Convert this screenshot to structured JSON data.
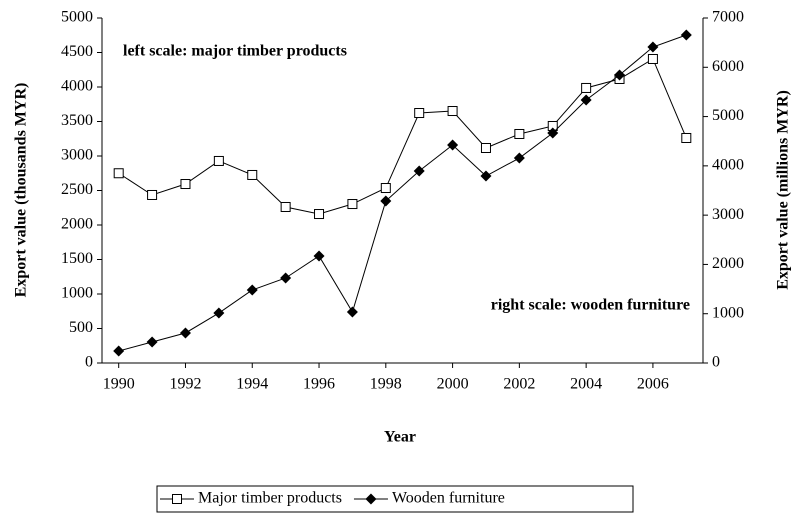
{
  "chart_data": {
    "type": "line",
    "xlabel": "Year",
    "ylabel": "Export value (thousands MYR)",
    "y2label": "Export value (millions MYR)",
    "annotations": [
      "left scale: major timber products",
      "right scale: wooden furniture"
    ],
    "x": [
      1990,
      1991,
      1992,
      1993,
      1994,
      1995,
      1996,
      1997,
      1998,
      1999,
      2000,
      2001,
      2002,
      2003,
      2004,
      2005,
      2006,
      2007
    ],
    "xlim": [
      1989.5,
      2007.5
    ],
    "xticks": [
      1990,
      1992,
      1994,
      1996,
      1998,
      2000,
      2002,
      2004,
      2006
    ],
    "ylim": [
      0,
      5000
    ],
    "yticks": [
      0,
      500,
      1000,
      1500,
      2000,
      2500,
      3000,
      3500,
      4000,
      4500,
      5000
    ],
    "y2lim": [
      0,
      7000
    ],
    "y2ticks": [
      0,
      1000,
      2000,
      3000,
      4000,
      5000,
      6000,
      7000
    ],
    "grid": false,
    "legend": "bottom",
    "series": [
      {
        "name": "Major timber products",
        "color": "#000000",
        "marker": "square",
        "axis": "y",
        "values": [
          2750,
          2435,
          2594,
          2928,
          2725,
          2261,
          2159,
          2304,
          2536,
          3623,
          3652,
          3116,
          3319,
          3435,
          3986,
          4116,
          4406,
          3261
        ]
      },
      {
        "name": "Wooden furniture",
        "color": "#000000",
        "marker": "diamond",
        "axis": "y2",
        "values": [
          243,
          426,
          609,
          1014,
          1481,
          1725,
          2171,
          1035,
          3287,
          3895,
          4423,
          3794,
          4159,
          4667,
          5336,
          5843,
          6411,
          6655
        ]
      }
    ]
  }
}
